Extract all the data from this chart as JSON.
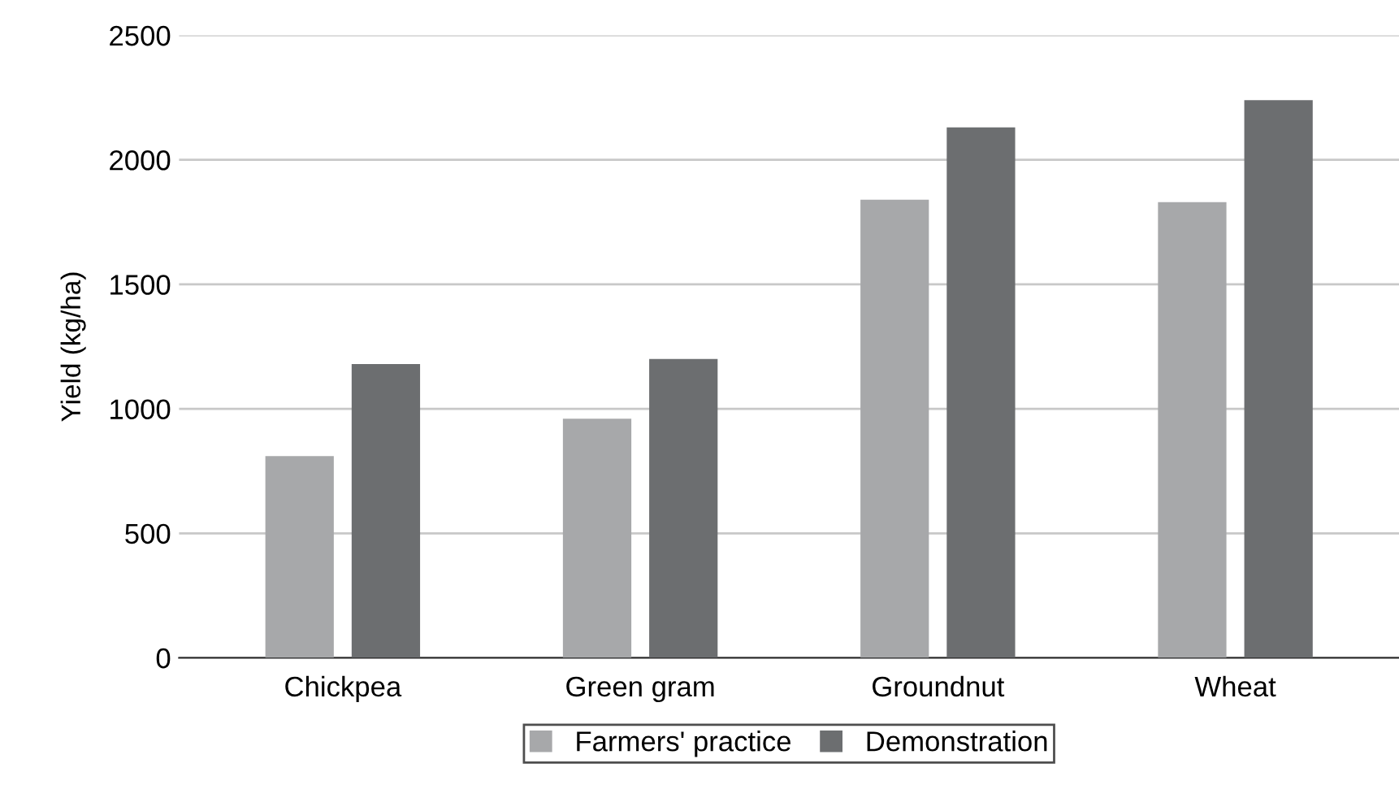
{
  "chart_data": {
    "type": "bar",
    "ylabel": "Yield (kg/ha)",
    "categories": [
      "Chickpea",
      "Green gram",
      "Groundnut",
      "Wheat"
    ],
    "series": [
      {
        "name": "Farmers' practice",
        "color": "#a7a8aa",
        "values": [
          810,
          960,
          1840,
          1830
        ]
      },
      {
        "name": "Demonstration",
        "color": "#6c6e70",
        "values": [
          1180,
          1200,
          2130,
          2240
        ]
      }
    ],
    "ylim": [
      0,
      2500
    ],
    "yticks": [
      0,
      500,
      1000,
      1500,
      2000,
      2500
    ],
    "grid": "y",
    "legend": "bottom"
  }
}
